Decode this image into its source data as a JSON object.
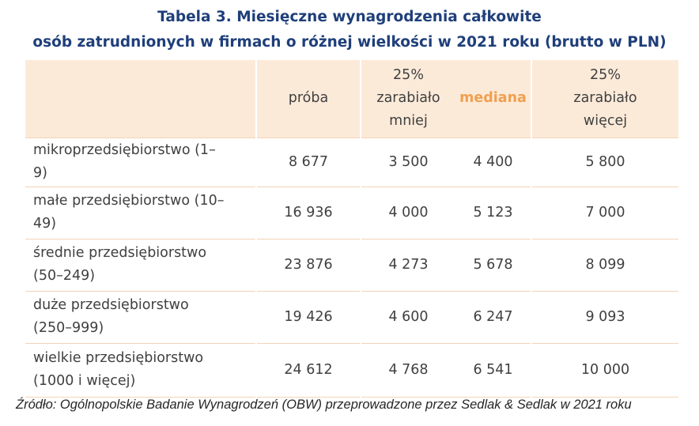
{
  "title": {
    "line1": "Tabela 3. Miesięczne wynagrodzenia całkowite",
    "line2": "osób zatrudnionych w firmach o różnej wielkości w 2021 roku (brutto w PLN)"
  },
  "headers": {
    "probe": "próba",
    "q25_l1": "25%",
    "q25_l2": "zarabiało",
    "q25_l3": "mniej",
    "median": "mediana",
    "q75_l1": "25%",
    "q75_l2": "zarabiało",
    "q75_l3": "więcej"
  },
  "rows": [
    {
      "label_l1": "mikroprzedsiębiorstwo (1–",
      "label_l2": "9)",
      "probe": "8 677",
      "q25": "3 500",
      "median": "4 400",
      "q75": "5 800"
    },
    {
      "label_l1": "małe przedsiębiorstwo (10–",
      "label_l2": "49)",
      "probe": "16 936",
      "q25": "4 000",
      "median": "5 123",
      "q75": "7 000"
    },
    {
      "label_l1": "średnie przedsiębiorstwo",
      "label_l2": "(50–249)",
      "probe": "23 876",
      "q25": "4 273",
      "median": "5 678",
      "q75": "8 099"
    },
    {
      "label_l1": "duże przedsiębiorstwo",
      "label_l2": "(250–999)",
      "probe": "19 426",
      "q25": "4 600",
      "median": "6 247",
      "q75": "9 093"
    },
    {
      "label_l1": "wielkie przedsiębiorstwo",
      "label_l2": "(1000 i więcej)",
      "probe": "24 612",
      "q25": "4 768",
      "median": "6 541",
      "q75": "10 000"
    }
  ],
  "source": "Źródło: Ogólnopolskie Badanie Wynagrodzeń (OBW) przeprowadzone przez Sedlak & Sedlak w 2021 roku",
  "colors": {
    "title": "#1f3f7a",
    "header_bg": "#fcead9",
    "median_header": "#f0a050",
    "row_border": "#f3d3b5"
  }
}
